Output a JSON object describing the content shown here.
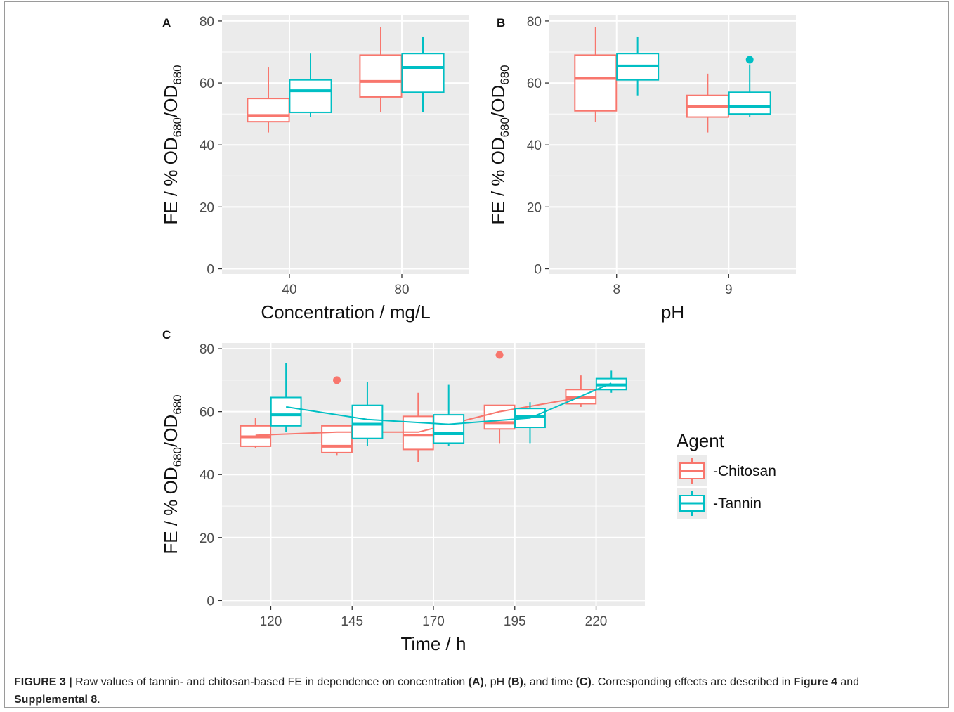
{
  "colors": {
    "chitosan": "#F8766D",
    "tannin": "#00BFC4",
    "panel_bg": "#EBEBEB",
    "grid": "#FFFFFF"
  },
  "legend": {
    "title": "Agent",
    "items": [
      "-Chitosan",
      "-Tannin"
    ]
  },
  "y_axis_label": {
    "main": "FE / % OD",
    "sub1": "680",
    "mid": "/OD",
    "sub2": "680"
  },
  "chart_data": [
    {
      "panel": "A",
      "type": "box",
      "xlabel": "Concentration / mg/L",
      "categories": [
        "40",
        "80"
      ],
      "ylim": [
        0,
        80
      ],
      "yticks": [
        0,
        20,
        40,
        60,
        80
      ],
      "series": [
        {
          "name": "-Chitosan",
          "boxes": [
            {
              "lower": 44,
              "q1": 47.5,
              "median": 49.5,
              "q3": 55,
              "upper": 65,
              "outliers": []
            },
            {
              "lower": 50.5,
              "q1": 55.5,
              "median": 60.5,
              "q3": 69,
              "upper": 78,
              "outliers": []
            }
          ]
        },
        {
          "name": "-Tannin",
          "boxes": [
            {
              "lower": 49,
              "q1": 50.5,
              "median": 57.5,
              "q3": 61,
              "upper": 69.5,
              "outliers": []
            },
            {
              "lower": 50.5,
              "q1": 57,
              "median": 65,
              "q3": 69.5,
              "upper": 75,
              "outliers": []
            }
          ]
        }
      ]
    },
    {
      "panel": "B",
      "type": "box",
      "xlabel": "pH",
      "categories": [
        "8",
        "9"
      ],
      "ylim": [
        0,
        80
      ],
      "yticks": [
        0,
        20,
        40,
        60,
        80
      ],
      "series": [
        {
          "name": "-Chitosan",
          "boxes": [
            {
              "lower": 47.5,
              "q1": 51,
              "median": 61.5,
              "q3": 69,
              "upper": 78,
              "outliers": []
            },
            {
              "lower": 44,
              "q1": 49,
              "median": 52.5,
              "q3": 56,
              "upper": 63,
              "outliers": []
            }
          ]
        },
        {
          "name": "-Tannin",
          "boxes": [
            {
              "lower": 56,
              "q1": 61,
              "median": 65.5,
              "q3": 69.5,
              "upper": 75,
              "outliers": []
            },
            {
              "lower": 49,
              "q1": 50,
              "median": 52.5,
              "q3": 57,
              "upper": 66,
              "outliers": [
                67.5
              ]
            }
          ]
        }
      ]
    },
    {
      "panel": "C",
      "type": "box",
      "xlabel": "Time / h",
      "categories": [
        "120",
        "145",
        "170",
        "195",
        "220"
      ],
      "ylim": [
        0,
        80
      ],
      "yticks": [
        0,
        20,
        40,
        60,
        80
      ],
      "series": [
        {
          "name": "-Chitosan",
          "trend": [
            52.5,
            53.5,
            53.5,
            60,
            64.5
          ],
          "boxes": [
            {
              "lower": 48.5,
              "q1": 49,
              "median": 52,
              "q3": 55.5,
              "upper": 58,
              "outliers": []
            },
            {
              "lower": 46,
              "q1": 47,
              "median": 49,
              "q3": 55.5,
              "upper": 55.5,
              "outliers": [
                70
              ]
            },
            {
              "lower": 44,
              "q1": 48,
              "median": 52.5,
              "q3": 58.5,
              "upper": 66,
              "outliers": []
            },
            {
              "lower": 50,
              "q1": 54.5,
              "median": 56.5,
              "q3": 62,
              "upper": 62,
              "outliers": [
                78
              ]
            },
            {
              "lower": 61.5,
              "q1": 62.5,
              "median": 64.5,
              "q3": 67,
              "upper": 71.5,
              "outliers": []
            }
          ]
        },
        {
          "name": "-Tannin",
          "trend": [
            61.5,
            57.5,
            56,
            58,
            69
          ],
          "boxes": [
            {
              "lower": 53.5,
              "q1": 55.5,
              "median": 59,
              "q3": 64.5,
              "upper": 75.5,
              "outliers": []
            },
            {
              "lower": 49,
              "q1": 51.5,
              "median": 56,
              "q3": 62,
              "upper": 69.5,
              "outliers": []
            },
            {
              "lower": 49,
              "q1": 50,
              "median": 53,
              "q3": 59,
              "upper": 68.5,
              "outliers": []
            },
            {
              "lower": 50,
              "q1": 55,
              "median": 58.5,
              "q3": 61,
              "upper": 63,
              "outliers": []
            },
            {
              "lower": 66,
              "q1": 67,
              "median": 68.5,
              "q3": 70.5,
              "upper": 73,
              "outliers": []
            }
          ]
        }
      ]
    }
  ],
  "caption": {
    "fig_label": "FIGURE 3 |",
    "t1": " Raw values of tannin- and chitosan-based FE in dependence on concentration ",
    "b1": "(A)",
    "t2": ", pH ",
    "b2": "(B),",
    "t3": " and time ",
    "b3": "(C)",
    "t4": ". Corresponding effects are described in ",
    "b4": "Figure 4",
    "t5": " and ",
    "b5": "Supplemental 8",
    "t6": "."
  }
}
